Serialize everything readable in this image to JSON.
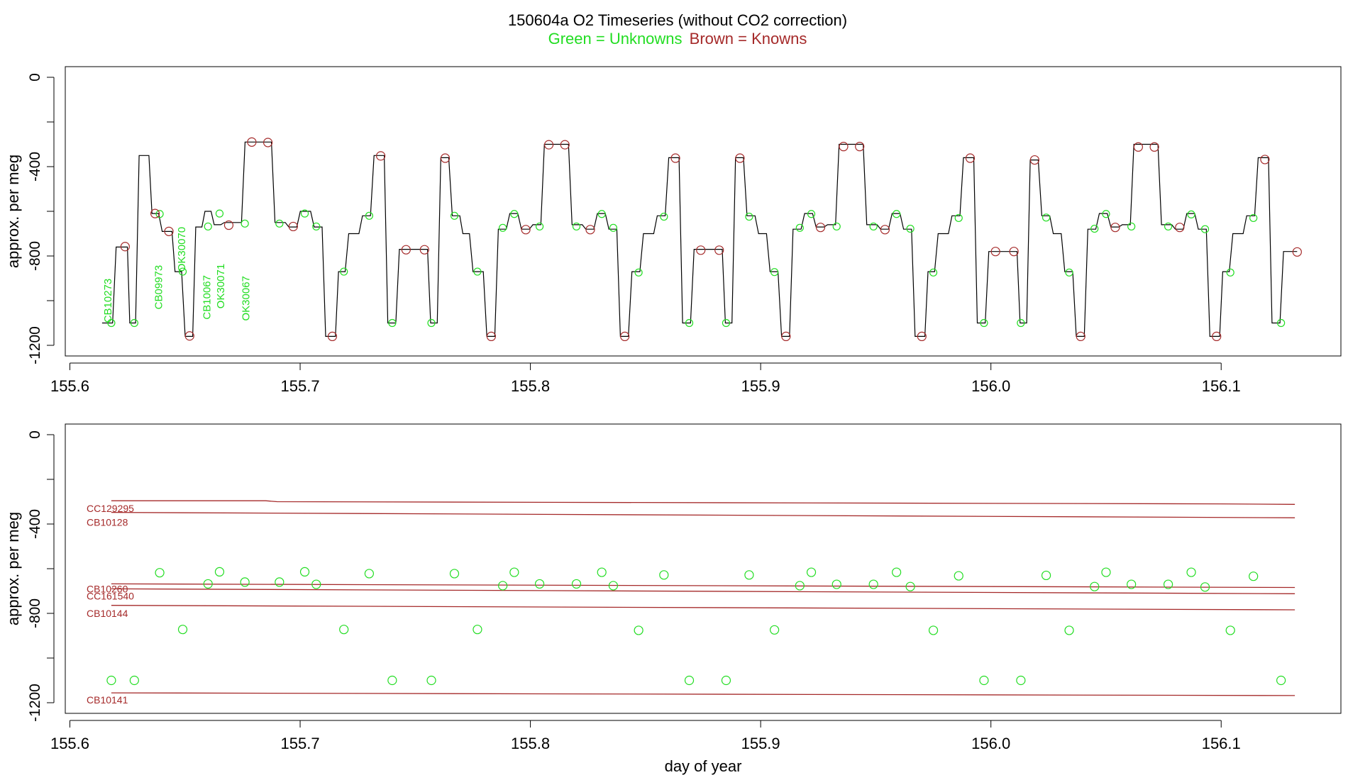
{
  "title": "150604a   O2 Timeseries (without CO2 correction)",
  "subtitle": {
    "unknowns": "Green = Unknowns",
    "knowns": "Brown = Knowns"
  },
  "colors": {
    "unknown": "#22dd22",
    "known": "#a52a2a",
    "trace": "#000000",
    "frame": "#000000"
  },
  "chart_data": [
    {
      "type": "line",
      "panel": "top",
      "xlabel": "",
      "ylabel": "approx. per meg",
      "xlim": [
        155.6,
        156.15
      ],
      "ylim": [
        -1200,
        0
      ],
      "y_reversed": true,
      "x_ticks": [
        "155.6",
        "155.7",
        "155.8",
        "155.9",
        "156.0",
        "156.1"
      ],
      "y_ticks": [
        "0",
        "-400",
        "-800",
        "-1200"
      ],
      "x_tick_values": [
        155.6,
        155.7,
        155.8,
        155.9,
        156.0,
        156.1
      ],
      "y_tick_values": [
        0,
        -400,
        -800,
        -1200
      ],
      "y_minor_ticks": [
        -200,
        -600,
        -1000
      ],
      "trace_x": [
        155.614,
        155.617,
        155.624,
        155.627,
        155.633,
        155.637,
        155.643,
        155.647,
        155.652,
        155.656,
        155.66,
        155.664,
        155.669,
        155.673,
        155.679,
        155.686,
        155.692,
        155.697,
        155.703,
        155.708,
        155.714,
        155.718,
        155.724,
        155.729,
        155.735,
        155.74,
        155.746,
        155.754,
        155.758,
        155.763,
        155.768,
        155.772,
        155.778,
        155.783,
        155.788,
        155.793,
        155.798,
        155.803,
        155.808,
        155.815,
        155.821,
        155.826,
        155.831,
        155.836,
        155.841,
        155.846,
        155.852,
        155.857,
        155.863,
        155.868,
        155.874,
        155.882,
        155.886,
        155.891,
        155.896,
        155.901,
        155.906,
        155.911,
        155.916,
        155.921,
        155.926,
        155.931,
        155.936,
        155.943,
        155.949,
        155.954,
        155.959,
        155.964,
        155.97,
        155.974,
        155.98,
        155.985,
        155.991,
        155.996,
        156.002,
        156.01,
        156.014,
        156.019,
        156.024,
        156.029,
        156.034,
        156.039,
        156.044,
        156.049,
        156.054,
        156.059,
        156.064,
        156.071,
        156.077,
        156.082,
        156.087,
        156.092,
        156.098,
        156.102,
        156.108,
        156.113,
        156.119,
        156.124,
        156.13,
        156.133
      ],
      "trace_y": [
        -1100,
        -1100,
        -760,
        -1100,
        -350,
        -610,
        -690,
        -870,
        -1160,
        -670,
        -600,
        -660,
        -650,
        -650,
        -290,
        -290,
        -650,
        -670,
        -600,
        -670,
        -1160,
        -870,
        -700,
        -620,
        -350,
        -1100,
        -770,
        -770,
        -1100,
        -360,
        -620,
        -700,
        -870,
        -1160,
        -680,
        -610,
        -680,
        -660,
        -300,
        -300,
        -660,
        -680,
        -610,
        -680,
        -1160,
        -870,
        -700,
        -620,
        -360,
        -1100,
        -770,
        -770,
        -1100,
        -360,
        -620,
        -700,
        -870,
        -1160,
        -680,
        -610,
        -670,
        -660,
        -300,
        -300,
        -660,
        -680,
        -610,
        -680,
        -1160,
        -870,
        -700,
        -620,
        -360,
        -1100,
        -780,
        -780,
        -1100,
        -370,
        -620,
        -700,
        -870,
        -1160,
        -680,
        -610,
        -670,
        -660,
        -300,
        -300,
        -660,
        -680,
        -610,
        -680,
        -1160,
        -870,
        -700,
        -620,
        -360,
        -1100,
        -780,
        -780
      ],
      "known_markers": [
        [
          155.624,
          -758
        ],
        [
          155.637,
          -610
        ],
        [
          155.643,
          -690
        ],
        [
          155.652,
          -1158
        ],
        [
          155.669,
          -662
        ],
        [
          155.679,
          -290
        ],
        [
          155.686,
          -292
        ],
        [
          155.697,
          -668
        ],
        [
          155.714,
          -1160
        ],
        [
          155.735,
          -352
        ],
        [
          155.746,
          -772
        ],
        [
          155.754,
          -772
        ],
        [
          155.763,
          -362
        ],
        [
          155.783,
          -1160
        ],
        [
          155.798,
          -682
        ],
        [
          155.808,
          -302
        ],
        [
          155.815,
          -302
        ],
        [
          155.826,
          -682
        ],
        [
          155.841,
          -1160
        ],
        [
          155.863,
          -362
        ],
        [
          155.874,
          -774
        ],
        [
          155.882,
          -774
        ],
        [
          155.891,
          -362
        ],
        [
          155.911,
          -1160
        ],
        [
          155.926,
          -672
        ],
        [
          155.936,
          -310
        ],
        [
          155.943,
          -310
        ],
        [
          155.954,
          -682
        ],
        [
          155.97,
          -1160
        ],
        [
          155.991,
          -362
        ],
        [
          156.002,
          -780
        ],
        [
          156.01,
          -780
        ],
        [
          156.019,
          -370
        ],
        [
          156.039,
          -1160
        ],
        [
          156.054,
          -672
        ],
        [
          156.064,
          -312
        ],
        [
          156.071,
          -312
        ],
        [
          156.082,
          -672
        ],
        [
          156.098,
          -1160
        ],
        [
          156.119,
          -368
        ],
        [
          156.133,
          -782
        ]
      ],
      "unknown_markers": [
        [
          155.618,
          -1100
        ],
        [
          155.628,
          -1100
        ],
        [
          155.639,
          -612
        ],
        [
          155.649,
          -870
        ],
        [
          155.66,
          -668
        ],
        [
          155.665,
          -610
        ],
        [
          155.676,
          -655
        ],
        [
          155.691,
          -655
        ],
        [
          155.702,
          -610
        ],
        [
          155.707,
          -668
        ],
        [
          155.719,
          -870
        ],
        [
          155.73,
          -620
        ],
        [
          155.74,
          -1100
        ],
        [
          155.757,
          -1100
        ],
        [
          155.767,
          -620
        ],
        [
          155.777,
          -870
        ],
        [
          155.788,
          -674
        ],
        [
          155.793,
          -612
        ],
        [
          155.804,
          -668
        ],
        [
          155.82,
          -668
        ],
        [
          155.831,
          -612
        ],
        [
          155.836,
          -674
        ],
        [
          155.847,
          -874
        ],
        [
          155.858,
          -624
        ],
        [
          155.869,
          -1100
        ],
        [
          155.885,
          -1100
        ],
        [
          155.895,
          -624
        ],
        [
          155.906,
          -872
        ],
        [
          155.917,
          -674
        ],
        [
          155.922,
          -612
        ],
        [
          155.933,
          -668
        ],
        [
          155.949,
          -668
        ],
        [
          155.959,
          -612
        ],
        [
          155.965,
          -678
        ],
        [
          155.975,
          -874
        ],
        [
          155.986,
          -630
        ],
        [
          155.997,
          -1100
        ],
        [
          156.013,
          -1100
        ],
        [
          156.024,
          -628
        ],
        [
          156.034,
          -874
        ],
        [
          156.045,
          -678
        ],
        [
          156.05,
          -612
        ],
        [
          156.061,
          -668
        ],
        [
          156.077,
          -668
        ],
        [
          156.087,
          -614
        ],
        [
          156.093,
          -680
        ],
        [
          156.104,
          -874
        ],
        [
          156.114,
          -630
        ],
        [
          156.126,
          -1100
        ]
      ],
      "annotations": [
        {
          "label": "CB10273",
          "x": 155.618,
          "y": -1000
        },
        {
          "label": "CB09973",
          "x": 155.64,
          "y": -940
        },
        {
          "label": "OK30070",
          "x": 155.65,
          "y": -770
        },
        {
          "label": "CB10067",
          "x": 155.661,
          "y": -985
        },
        {
          "label": "OK30071",
          "x": 155.667,
          "y": -935
        },
        {
          "label": "OK30067",
          "x": 155.678,
          "y": -990
        }
      ]
    },
    {
      "type": "scatter",
      "panel": "bottom",
      "xlabel": "day of year",
      "ylabel": "approx. per meg",
      "xlim": [
        155.6,
        156.15
      ],
      "ylim": [
        -1200,
        0
      ],
      "y_reversed": true,
      "x_ticks": [
        "155.6",
        "155.7",
        "155.8",
        "155.9",
        "156.0",
        "156.1"
      ],
      "y_ticks": [
        "0",
        "-400",
        "-800",
        "-1200"
      ],
      "x_tick_values": [
        155.6,
        155.7,
        155.8,
        155.9,
        156.0,
        156.1
      ],
      "y_tick_values": [
        0,
        -400,
        -800,
        -1200
      ],
      "y_minor_ticks": [
        -200,
        -600,
        -1000
      ],
      "known_lines": [
        {
          "name": "CC129295",
          "x": [
            155.618,
            155.685,
            155.69,
            156.1,
            156.132
          ],
          "y": [
            -296,
            -296,
            -300,
            -310,
            -312
          ]
        },
        {
          "name": "CB10128",
          "x": [
            155.618,
            156.132
          ],
          "y": [
            -348,
            -372
          ]
        },
        {
          "name": "CB10260",
          "x": [
            155.618,
            156.132
          ],
          "y": [
            -668,
            -684
          ]
        },
        {
          "name": "CC161540",
          "x": [
            155.618,
            156.132
          ],
          "y": [
            -690,
            -712
          ]
        },
        {
          "name": "CB10144",
          "x": [
            155.618,
            156.132
          ],
          "y": [
            -764,
            -784
          ]
        },
        {
          "name": "CB10141",
          "x": [
            155.618,
            156.132
          ],
          "y": [
            -1156,
            -1168
          ]
        }
      ],
      "known_label_y": [
        {
          "label": "CC129295",
          "y": -330
        },
        {
          "label": "CB10128",
          "y": -392
        },
        {
          "label": "CB10260",
          "y": -690
        },
        {
          "label": "CC161540",
          "y": -722
        },
        {
          "label": "CB10144",
          "y": -800
        },
        {
          "label": "CB10141",
          "y": -1188
        }
      ],
      "unknown_points": [
        [
          155.618,
          -1100
        ],
        [
          155.628,
          -1100
        ],
        [
          155.639,
          -618
        ],
        [
          155.649,
          -872
        ],
        [
          155.66,
          -668
        ],
        [
          155.665,
          -614
        ],
        [
          155.676,
          -660
        ],
        [
          155.691,
          -660
        ],
        [
          155.702,
          -614
        ],
        [
          155.707,
          -670
        ],
        [
          155.719,
          -872
        ],
        [
          155.73,
          -622
        ],
        [
          155.74,
          -1100
        ],
        [
          155.757,
          -1100
        ],
        [
          155.767,
          -622
        ],
        [
          155.777,
          -872
        ],
        [
          155.788,
          -676
        ],
        [
          155.793,
          -616
        ],
        [
          155.804,
          -668
        ],
        [
          155.82,
          -668
        ],
        [
          155.831,
          -616
        ],
        [
          155.836,
          -676
        ],
        [
          155.847,
          -876
        ],
        [
          155.858,
          -628
        ],
        [
          155.869,
          -1100
        ],
        [
          155.885,
          -1100
        ],
        [
          155.895,
          -628
        ],
        [
          155.906,
          -874
        ],
        [
          155.917,
          -676
        ],
        [
          155.922,
          -616
        ],
        [
          155.933,
          -670
        ],
        [
          155.949,
          -670
        ],
        [
          155.959,
          -616
        ],
        [
          155.965,
          -680
        ],
        [
          155.975,
          -876
        ],
        [
          155.986,
          -632
        ],
        [
          155.997,
          -1100
        ],
        [
          156.013,
          -1100
        ],
        [
          156.024,
          -630
        ],
        [
          156.034,
          -876
        ],
        [
          156.045,
          -680
        ],
        [
          156.05,
          -616
        ],
        [
          156.061,
          -670
        ],
        [
          156.077,
          -670
        ],
        [
          156.087,
          -616
        ],
        [
          156.093,
          -682
        ],
        [
          156.104,
          -876
        ],
        [
          156.114,
          -634
        ],
        [
          156.126,
          -1100
        ]
      ]
    }
  ]
}
